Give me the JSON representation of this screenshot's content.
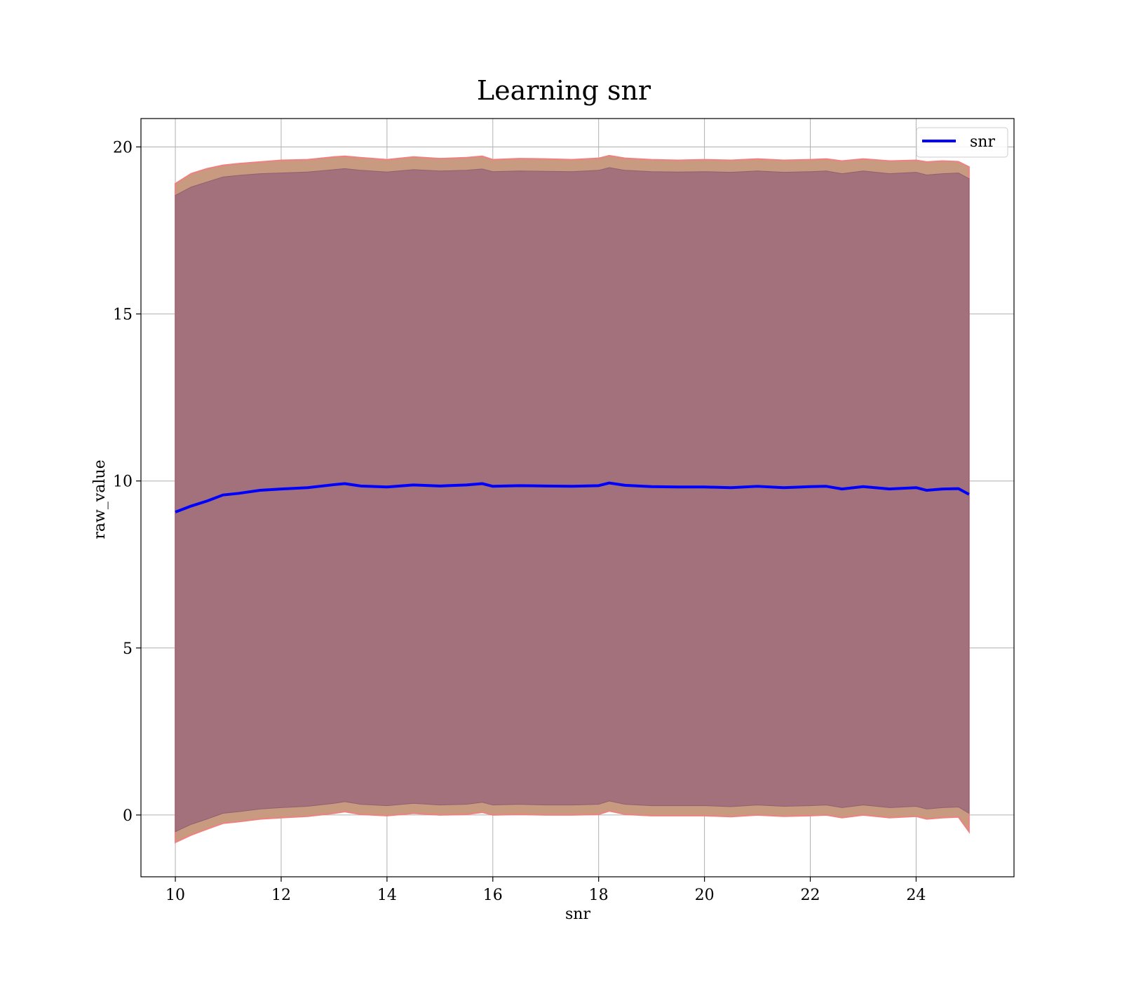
{
  "chart_data": {
    "type": "line",
    "title": "Learning snr",
    "xlabel": "snr",
    "ylabel": "raw_value",
    "xlim": [
      9.35,
      25.85
    ],
    "ylim": [
      -1.85,
      20.85
    ],
    "xticks": [
      10,
      12,
      14,
      16,
      18,
      20,
      22,
      24
    ],
    "xtick_labels": [
      "10",
      "12",
      "14",
      "16",
      "18",
      "20",
      "22",
      "24"
    ],
    "yticks": [
      0,
      5,
      10,
      15,
      20
    ],
    "ytick_labels": [
      "0",
      "5",
      "10",
      "15",
      "20"
    ],
    "grid": true,
    "legend": {
      "position": "top-right",
      "entries": [
        "snr"
      ]
    },
    "colors": {
      "line": "#0000ff",
      "inner_band": "#a2717b",
      "outer_band": "#c89a80",
      "band_edge": "#f08080",
      "grid": "#b0b0b0"
    },
    "series": [
      {
        "name": "snr",
        "x": [
          10.0,
          10.3,
          10.6,
          10.9,
          11.2,
          11.6,
          12.0,
          12.5,
          13.0,
          13.2,
          13.5,
          14.0,
          14.5,
          15.0,
          15.5,
          15.8,
          16.0,
          16.5,
          17.0,
          17.5,
          18.0,
          18.2,
          18.5,
          19.0,
          19.5,
          20.0,
          20.5,
          21.0,
          21.5,
          22.0,
          22.3,
          22.6,
          23.0,
          23.5,
          24.0,
          24.2,
          24.5,
          24.8,
          25.0
        ],
        "y": [
          9.07,
          9.25,
          9.4,
          9.58,
          9.63,
          9.72,
          9.76,
          9.8,
          9.89,
          9.92,
          9.85,
          9.82,
          9.88,
          9.85,
          9.88,
          9.92,
          9.84,
          9.86,
          9.85,
          9.84,
          9.86,
          9.94,
          9.87,
          9.83,
          9.82,
          9.82,
          9.8,
          9.84,
          9.8,
          9.83,
          9.84,
          9.76,
          9.83,
          9.76,
          9.8,
          9.72,
          9.76,
          9.77,
          9.6
        ],
        "outer_upper": [
          18.9,
          19.2,
          19.35,
          19.45,
          19.5,
          19.55,
          19.6,
          19.62,
          19.7,
          19.72,
          19.68,
          19.62,
          19.7,
          19.65,
          19.68,
          19.72,
          19.62,
          19.65,
          19.64,
          19.62,
          19.66,
          19.74,
          19.66,
          19.62,
          19.6,
          19.62,
          19.6,
          19.64,
          19.6,
          19.62,
          19.64,
          19.58,
          19.64,
          19.58,
          19.6,
          19.55,
          19.58,
          19.56,
          19.4
        ],
        "inner_upper": [
          18.55,
          18.8,
          18.95,
          19.1,
          19.15,
          19.2,
          19.22,
          19.25,
          19.32,
          19.35,
          19.3,
          19.25,
          19.32,
          19.28,
          19.3,
          19.34,
          19.26,
          19.28,
          19.27,
          19.26,
          19.3,
          19.38,
          19.3,
          19.26,
          19.25,
          19.26,
          19.24,
          19.28,
          19.24,
          19.26,
          19.28,
          19.2,
          19.28,
          19.2,
          19.24,
          19.16,
          19.2,
          19.22,
          19.05
        ],
        "inner_lower": [
          -0.5,
          -0.28,
          -0.12,
          0.05,
          0.1,
          0.18,
          0.22,
          0.26,
          0.35,
          0.4,
          0.32,
          0.28,
          0.35,
          0.3,
          0.32,
          0.38,
          0.3,
          0.32,
          0.3,
          0.3,
          0.32,
          0.42,
          0.32,
          0.28,
          0.28,
          0.28,
          0.25,
          0.3,
          0.26,
          0.28,
          0.3,
          0.22,
          0.3,
          0.22,
          0.26,
          0.18,
          0.22,
          0.24,
          0.05
        ],
        "outer_lower": [
          -0.82,
          -0.6,
          -0.42,
          -0.25,
          -0.2,
          -0.12,
          -0.08,
          -0.04,
          0.05,
          0.1,
          0.02,
          -0.02,
          0.05,
          0.0,
          0.02,
          0.08,
          0.0,
          0.02,
          0.0,
          0.0,
          0.02,
          0.12,
          0.02,
          -0.02,
          -0.02,
          -0.02,
          -0.05,
          0.0,
          -0.04,
          -0.02,
          0.0,
          -0.08,
          0.0,
          -0.08,
          -0.04,
          -0.12,
          -0.08,
          -0.06,
          -0.5
        ]
      }
    ]
  }
}
